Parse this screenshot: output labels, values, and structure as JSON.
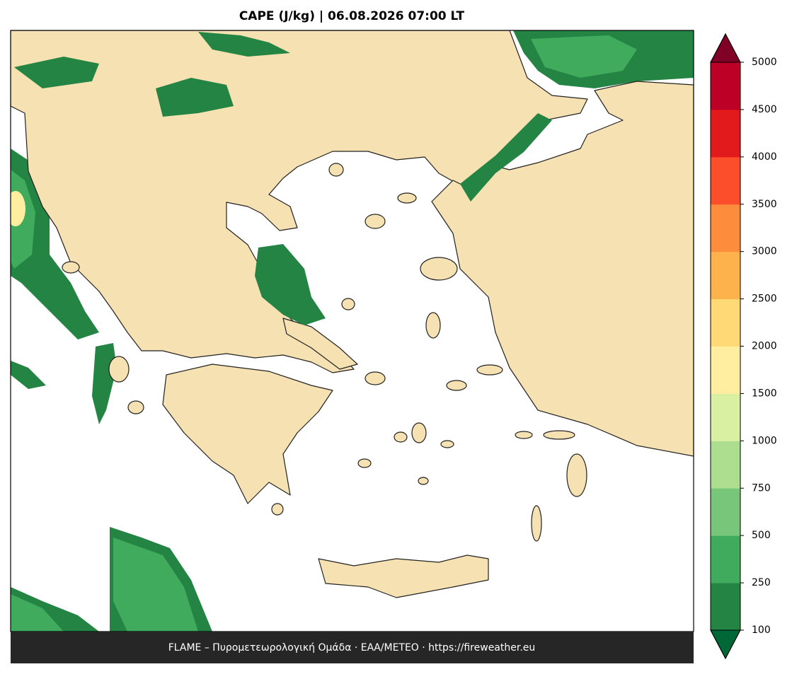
{
  "title": "CAPE (J/kg)  |  06.08.2026 07:00 LT",
  "colorbar": {
    "levels": [
      100,
      250,
      500,
      750,
      1000,
      1500,
      2000,
      2500,
      3000,
      3500,
      4000,
      4500,
      5000
    ],
    "colors": [
      "#238443",
      "#41ab5d",
      "#78c679",
      "#addd8e",
      "#d9f0a3",
      "#ffeda0",
      "#fed976",
      "#feb24c",
      "#fd8d3c",
      "#fc4e2a",
      "#e31a1c",
      "#bd0026"
    ],
    "under_color": "#006837",
    "over_color": "#800026"
  },
  "footer": "FLAME – Πυρομετεωρολογική Ομάδα · ΕΑΑ/METEO · https://fireweather.eu"
}
